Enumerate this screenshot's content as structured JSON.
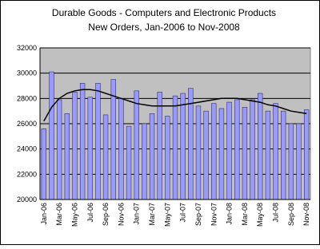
{
  "chart_data": {
    "type": "bar",
    "title": "Durable Goods - Computers and Electronic Products",
    "subtitle": "New Orders, Jan-2006 to Nov-2008",
    "categories": [
      "Jan-06",
      null,
      "Mar-06",
      null,
      "May-06",
      null,
      "Jul-06",
      null,
      "Sep-06",
      null,
      "Nov-06",
      null,
      "Jan-07",
      null,
      "Mar-07",
      null,
      "May-07",
      null,
      "Jul-07",
      null,
      "Sep-07",
      null,
      "Nov-07",
      null,
      "Jan-08",
      null,
      "Mar-08",
      null,
      "May-08",
      null,
      "Jul-08",
      null,
      "Sep-08",
      null,
      "Nov-08"
    ],
    "values": [
      25600,
      30100,
      27900,
      26800,
      28500,
      29200,
      28100,
      29200,
      26700,
      29500,
      28000,
      25800,
      28600,
      26000,
      26800,
      28500,
      26600,
      28200,
      28400,
      28800,
      27400,
      27000,
      27600,
      27200,
      27700,
      27900,
      27300,
      27900,
      28400,
      27000,
      27600,
      27000,
      26000,
      26000,
      27100
    ],
    "color": "#9999ff",
    "trend": {
      "color": "#000000",
      "values": [
        26200,
        27300,
        28000,
        28400,
        28600,
        28700,
        28700,
        28600,
        28400,
        28200,
        28000,
        27800,
        27600,
        27500,
        27400,
        27400,
        27400,
        27400,
        27500,
        27600,
        27700,
        27800,
        27900,
        28000,
        28000,
        28000,
        27900,
        27800,
        27700,
        27500,
        27400,
        27200,
        27000,
        26900,
        26800
      ]
    },
    "ylim": [
      20000,
      32000
    ],
    "yticks": [
      20000,
      22000,
      24000,
      26000,
      28000,
      30000,
      32000
    ],
    "grid": true
  }
}
